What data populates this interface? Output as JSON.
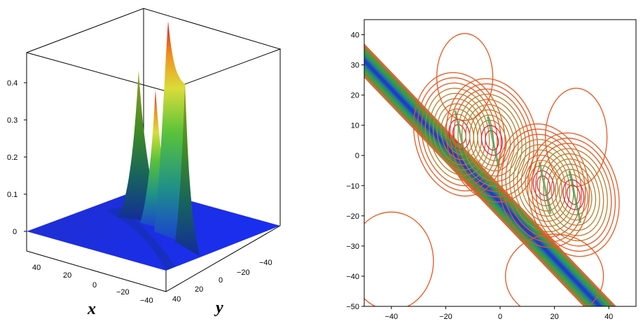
{
  "chart_data": [
    {
      "type": "surface",
      "xlabel": "x",
      "ylabel": "y",
      "zlabel": "",
      "xlim": [
        -50,
        50
      ],
      "ylim": [
        -50,
        50
      ],
      "zlim": [
        0,
        0.45
      ],
      "x_ticks": [
        "40",
        "20",
        "0",
        "−20",
        "−40"
      ],
      "y_ticks": [
        "40",
        "20",
        "0",
        "−20",
        "−40"
      ],
      "z_ticks": [
        "0",
        "0.1",
        "0.2",
        "0.3",
        "0.4"
      ],
      "grid": false,
      "peaks": [
        {
          "x": -10,
          "y": 8,
          "height": 0.38
        },
        {
          "x": 0,
          "y": 2,
          "height": 0.34
        },
        {
          "x": 12,
          "y": -10,
          "height": 0.49
        },
        {
          "x": 20,
          "y": -14,
          "height": 0.38
        }
      ],
      "colormap": [
        "#1a1ae6",
        "#1fb7a0",
        "#6bd13a",
        "#e6e63a",
        "#f08a1e",
        "#e01414"
      ]
    },
    {
      "type": "contour",
      "xlabel": "",
      "ylabel": "",
      "xlim": [
        -50,
        50
      ],
      "ylim": [
        -50,
        45
      ],
      "x_ticks": [
        "−40",
        "−20",
        "0",
        "20",
        "40"
      ],
      "y_ticks": [
        "40",
        "30",
        "20",
        "10",
        "0",
        "−10",
        "−20",
        "−30",
        "−40",
        "−50"
      ],
      "x_tick_values": [
        -40,
        -20,
        0,
        20,
        40
      ],
      "y_tick_values": [
        40,
        30,
        20,
        10,
        0,
        -10,
        -20,
        -30,
        -40,
        -50
      ],
      "grid": false,
      "band": {
        "from": [
          -50,
          33
        ],
        "to": [
          35,
          -50
        ],
        "center_color": "#1f3fc7",
        "edge_color": "#4aa33a"
      },
      "centers": [
        {
          "x": -15,
          "y": 7,
          "kind": "max"
        },
        {
          "x": -3,
          "y": 5,
          "kind": "min"
        },
        {
          "x": 16,
          "y": -10,
          "kind": "max"
        },
        {
          "x": 27,
          "y": -13,
          "kind": "min"
        }
      ],
      "line_colors": [
        "#e8561e",
        "#b97e2a",
        "#dd2244"
      ]
    }
  ]
}
